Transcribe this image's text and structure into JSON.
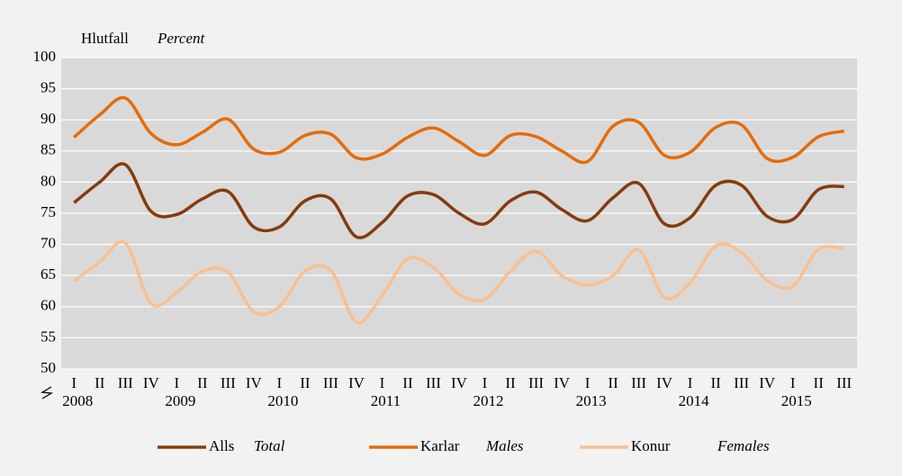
{
  "chart_data": {
    "type": "line",
    "ylabel": "Hlutfall",
    "ylabel_en": "Percent",
    "categories": [
      "I",
      "II",
      "III",
      "IV",
      "I",
      "II",
      "III",
      "IV",
      "I",
      "II",
      "III",
      "IV",
      "I",
      "II",
      "III",
      "IV",
      "I",
      "II",
      "III",
      "IV",
      "I",
      "II",
      "III",
      "IV",
      "I",
      "II",
      "III",
      "IV",
      "I",
      "II",
      "III"
    ],
    "years": [
      "2008",
      "2009",
      "2010",
      "2011",
      "2012",
      "2013",
      "2014",
      "2015"
    ],
    "series": [
      {
        "name": "Alls",
        "name_en": "Total",
        "color": "#843c0c",
        "values": [
          76.7,
          80.0,
          82.8,
          75.3,
          74.8,
          77.3,
          78.5,
          72.8,
          72.8,
          77.0,
          77.3,
          71.2,
          73.5,
          77.8,
          78.0,
          75.0,
          73.3,
          77.0,
          78.4,
          75.6,
          73.8,
          77.5,
          79.8,
          73.3,
          74.3,
          79.5,
          79.5,
          74.5,
          74.0,
          78.8,
          79.3
        ]
      },
      {
        "name": "Karlar",
        "name_en": "Males",
        "color": "#e46c0a",
        "values": [
          87.2,
          90.8,
          93.5,
          87.8,
          86.0,
          88.0,
          90.1,
          85.3,
          84.8,
          87.5,
          87.7,
          83.9,
          84.5,
          87.2,
          88.7,
          86.5,
          84.3,
          87.5,
          87.3,
          85.0,
          83.3,
          89.0,
          89.6,
          84.3,
          84.8,
          88.8,
          89.2,
          83.8,
          84.0,
          87.3,
          88.2
        ]
      },
      {
        "name": "Konur",
        "name_en": "Females",
        "color": "#fac090",
        "values": [
          64.1,
          67.2,
          70.2,
          60.5,
          62.3,
          65.7,
          65.5,
          59.2,
          60.0,
          65.7,
          65.8,
          57.5,
          61.8,
          67.7,
          66.3,
          62.0,
          61.2,
          65.7,
          68.9,
          65.0,
          63.5,
          65.0,
          69.1,
          61.5,
          63.8,
          69.8,
          68.7,
          64.2,
          63.3,
          69.2,
          69.3
        ]
      }
    ],
    "ylim": [
      50,
      100
    ],
    "yticks": [
      50,
      55,
      60,
      65,
      70,
      75,
      80,
      85,
      90,
      95,
      100
    ],
    "grid": true
  }
}
